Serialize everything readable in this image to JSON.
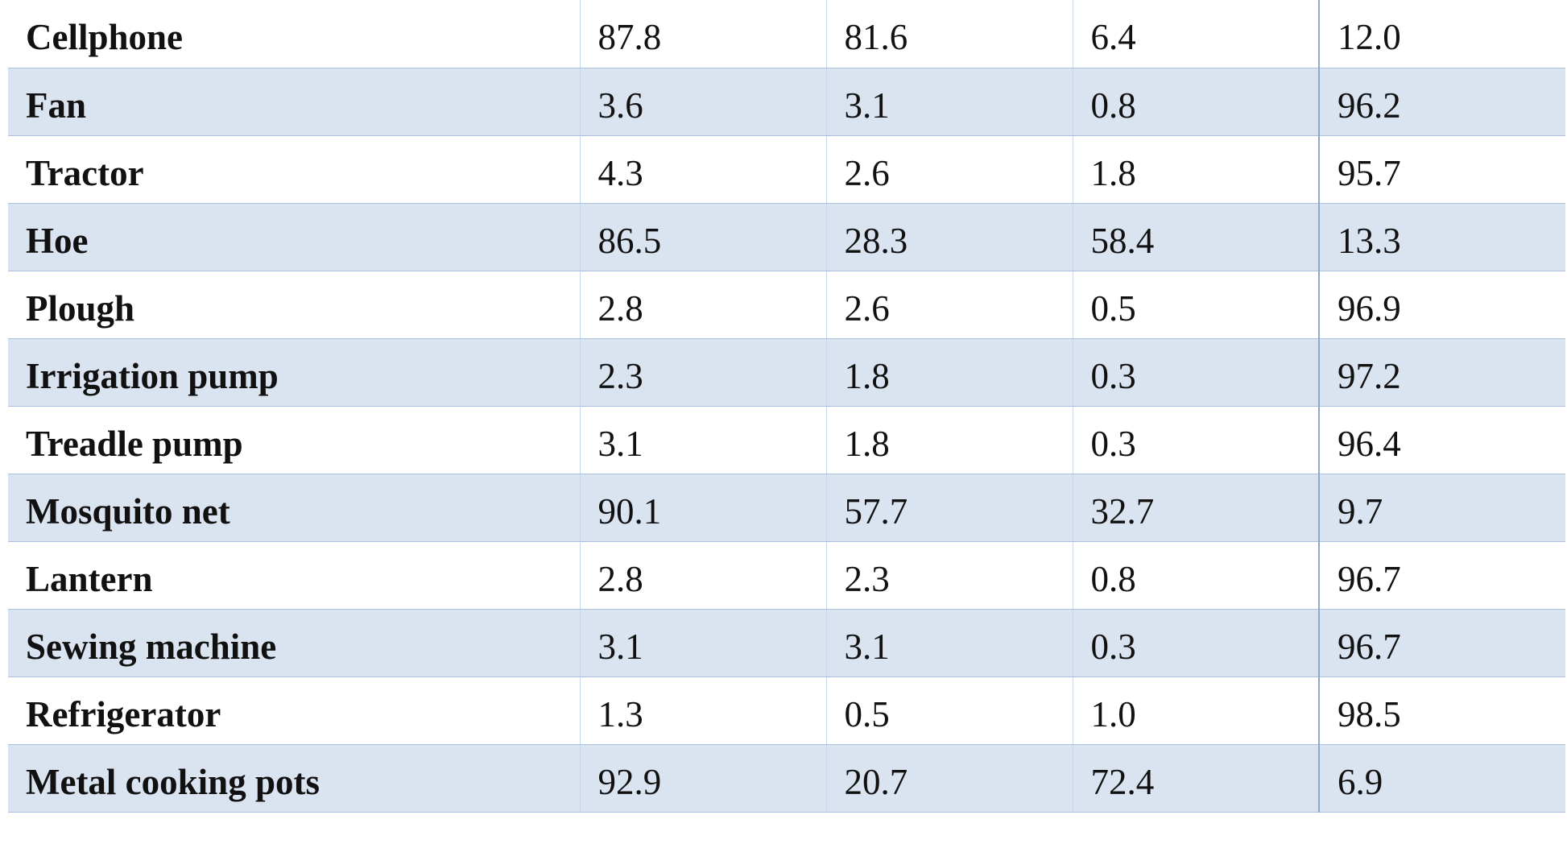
{
  "table": {
    "rows": [
      [
        "Cellphone",
        "87.8",
        "81.6",
        "6.4",
        "12.0"
      ],
      [
        "Fan",
        "3.6",
        "3.1",
        "0.8",
        "96.2"
      ],
      [
        "Tractor",
        "4.3",
        "2.6",
        "1.8",
        "95.7"
      ],
      [
        "Hoe",
        "86.5",
        "28.3",
        "58.4",
        "13.3"
      ],
      [
        "Plough",
        "2.8",
        "2.6",
        "0.5",
        "96.9"
      ],
      [
        "Irrigation pump",
        "2.3",
        "1.8",
        "0.3",
        "97.2"
      ],
      [
        "Treadle pump",
        "3.1",
        "1.8",
        "0.3",
        "96.4"
      ],
      [
        "Mosquito net",
        "90.1",
        "57.7",
        "32.7",
        "9.7"
      ],
      [
        "Lantern",
        "2.8",
        "2.3",
        "0.8",
        "96.7"
      ],
      [
        "Sewing machine",
        "3.1",
        "3.1",
        "0.3",
        "96.7"
      ],
      [
        "Refrigerator",
        "1.3",
        "0.5",
        "1.0",
        "98.5"
      ],
      [
        "Metal cooking pots",
        "92.9",
        "20.7",
        "72.4",
        "6.9"
      ]
    ]
  }
}
